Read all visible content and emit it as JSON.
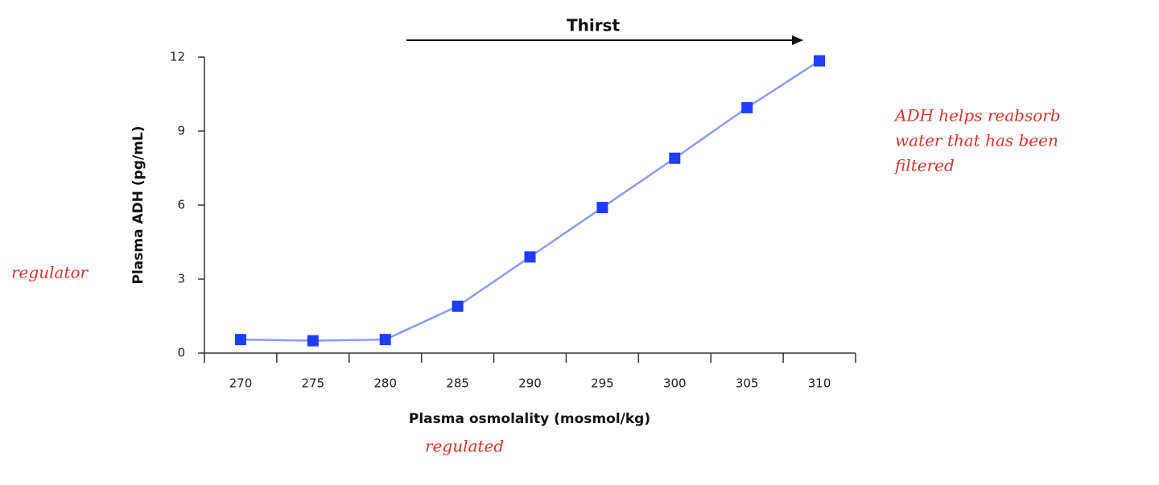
{
  "chart_data": {
    "type": "line",
    "x_label": "Plasma osmolality (mosmol/kg)",
    "y_label": "Plasma ADH (pg/mL)",
    "categories": [
      "270",
      "275",
      "280",
      "285",
      "290",
      "295",
      "300",
      "305",
      "310"
    ],
    "series": [
      {
        "color": "#1f3dff",
        "line_color": "#8c9bff",
        "values": [
          0.55,
          0.5,
          0.55,
          1.9,
          3.9,
          5.9,
          7.9,
          9.95,
          11.85
        ]
      }
    ],
    "ylim": [
      0,
      12
    ],
    "yticks": [
      0,
      3,
      6,
      9,
      12
    ],
    "arrow_label": "Thirst",
    "handwritten_notes": {
      "left": "regulator",
      "bottom": "regulated",
      "right": [
        "ADH helps reabsorb",
        "water that has been",
        "filtered"
      ]
    }
  }
}
